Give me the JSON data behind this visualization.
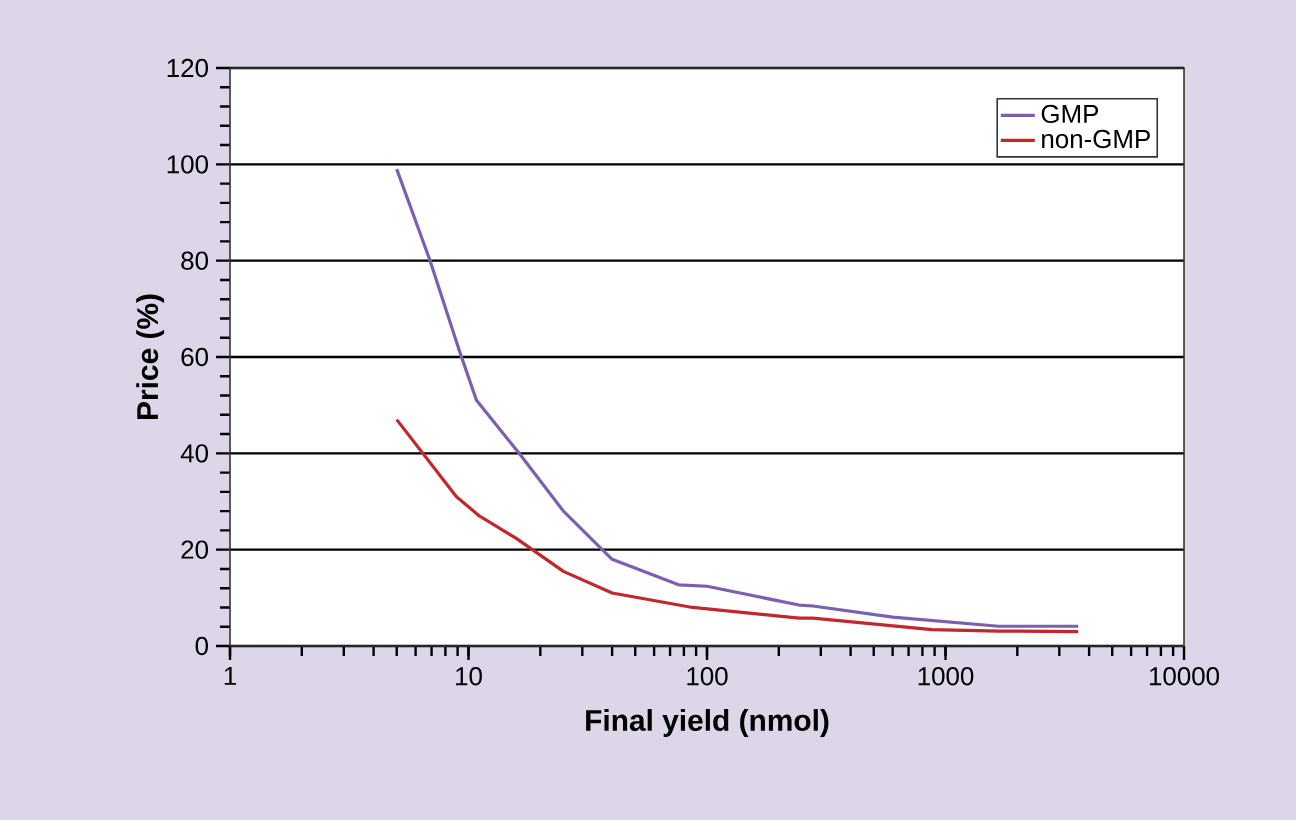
{
  "chart_data": {
    "type": "line",
    "xlabel": "Final yield (nmol)",
    "ylabel": "Price (%)",
    "log": "x",
    "xlim": [
      1,
      10000
    ],
    "xticks": [
      1,
      10,
      100,
      1000,
      10000
    ],
    "ylim": [
      0,
      120
    ],
    "yticks": [
      0,
      20,
      40,
      60,
      80,
      100,
      120
    ],
    "grid": "y",
    "legend": "top right",
    "marker": "none",
    "line_style": "solid",
    "series": [
      {
        "name": "GMP",
        "color": "#7b5fb0",
        "x": [
          5,
          6.9,
          9.2,
          10.8,
          16.3,
          25,
          40,
          76,
          100,
          243,
          278,
          600,
          1670,
          3600
        ],
        "values": [
          99,
          80,
          61,
          51,
          40,
          28,
          18,
          12.7,
          12.4,
          8.5,
          8.3,
          6,
          4.1,
          4.1
        ]
      },
      {
        "name": "non-GMP",
        "color": "#c0282d",
        "x": [
          5,
          8.9,
          11.1,
          15.8,
          25,
          40,
          87,
          243,
          278,
          877,
          1670,
          3600
        ],
        "values": [
          47,
          31,
          27,
          22.4,
          15.5,
          11,
          8,
          5.8,
          5.8,
          3.4,
          3.1,
          3
        ]
      }
    ]
  }
}
